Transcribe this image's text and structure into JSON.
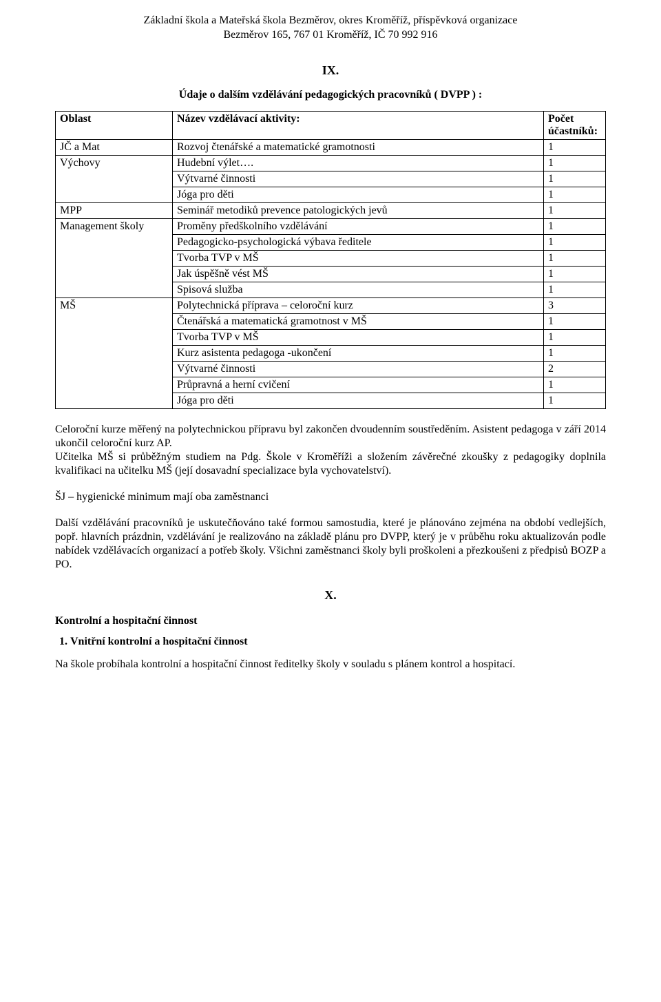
{
  "header": {
    "line1": "Základní škola a Mateřská škola Bezměrov, okres Kroměříž, příspěvková organizace",
    "line2": "Bezměrov 165, 767 01 Kroměříž, IČ 70 992 916"
  },
  "section9": {
    "num": "IX.",
    "title": "Údaje o dalším vzdělávání pedagogických pracovníků ( DVPP ) :",
    "table": {
      "head_oblast": "Oblast",
      "head_activity": "Název vzdělávací aktivity:",
      "head_count": "Počet účastníků:",
      "groups": [
        {
          "oblast": "JČ a Mat",
          "rows": [
            {
              "activity": "Rozvoj čtenářské a matematické gramotnosti",
              "count": "1"
            }
          ]
        },
        {
          "oblast": "Výchovy",
          "rows": [
            {
              "activity": "Hudební výlet….",
              "count": "1"
            },
            {
              "activity": "Výtvarné činnosti",
              "count": "1"
            },
            {
              "activity": "Jóga pro děti",
              "count": "1"
            }
          ]
        },
        {
          "oblast": "MPP",
          "rows": [
            {
              "activity": "Seminář metodiků prevence patologických jevů",
              "count": "1"
            }
          ]
        },
        {
          "oblast": "Management školy",
          "rows": [
            {
              "activity": "Proměny předškolního vzdělávání",
              "count": "1"
            },
            {
              "activity": "Pedagogicko-psychologická výbava ředitele",
              "count": "1"
            },
            {
              "activity": "Tvorba TVP v MŠ",
              "count": "1"
            },
            {
              "activity": "Jak úspěšně vést MŠ",
              "count": "1"
            },
            {
              "activity": "Spisová služba",
              "count": "1"
            }
          ]
        },
        {
          "oblast": "MŠ",
          "rows": [
            {
              "activity": "Polytechnická příprava – celoroční kurz",
              "count": "3"
            },
            {
              "activity": "Čtenářská a matematická gramotnost v MŠ",
              "count": "1"
            },
            {
              "activity": "Tvorba TVP v MŠ",
              "count": "1"
            },
            {
              "activity": "Kurz asistenta pedagoga -ukončení",
              "count": "1"
            },
            {
              "activity": "Výtvarné činnosti",
              "count": "2"
            },
            {
              "activity": "Průpravná a herní cvičení",
              "count": "1"
            },
            {
              "activity": "Jóga pro děti",
              "count": "1"
            }
          ]
        }
      ]
    },
    "para1": "Celoroční kurze měřený na polytechnickou přípravu byl zakončen dvoudenním soustředěním. Asistent pedagoga v září 2014 ukončil celoroční kurz AP.",
    "para1b": "Učitelka MŠ si průběžným studiem na Pdg. Škole v Kroměříži a složením závěrečné zkoušky z pedagogiky doplnila kvalifikaci na učitelku MŠ (její dosavadní specializace byla vychovatelství).",
    "para2": "ŠJ – hygienické minimum mají oba zaměstnanci",
    "para3": "Další vzdělávání pracovníků je uskutečňováno také formou samostudia, které je plánováno zejména na období vedlejších, popř. hlavních prázdnin, vzdělávání je realizováno na základě plánu pro DVPP, který je v průběhu roku aktualizován podle nabídek vzdělávacích organizací a potřeb školy. Všichni zaměstnanci školy byli proškoleni a přezkoušeni z předpisů BOZP a PO."
  },
  "section10": {
    "num": "X.",
    "heading": "Kontrolní a hospitační činnost",
    "item1": "Vnitřní kontrolní a hospitační činnost",
    "para": "Na škole probíhala kontrolní a hospitační činnost ředitelky školy v souladu s plánem kontrol a hospitací."
  }
}
